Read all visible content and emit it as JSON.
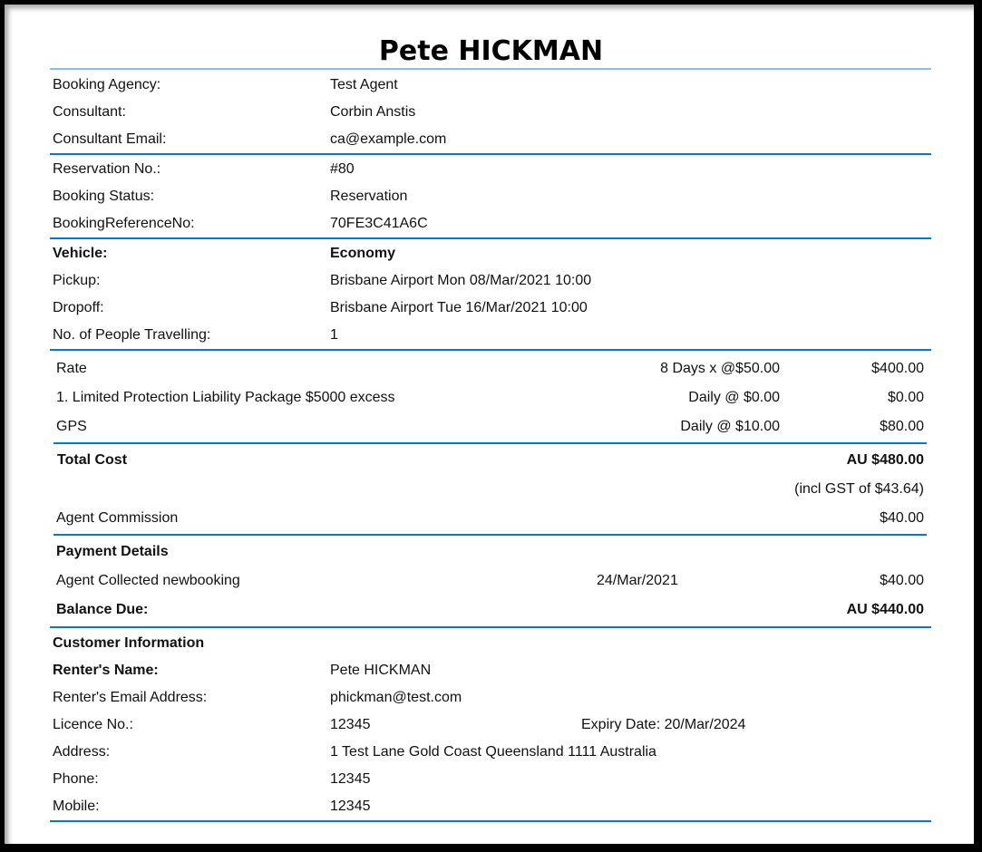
{
  "title": "Pete HICKMAN",
  "colors": {
    "top_rule": "#7fbfff",
    "rule": "#0a7ac0"
  },
  "agency": [
    {
      "label": "Booking Agency:",
      "value": "Test Agent"
    },
    {
      "label": "Consultant:",
      "value": "Corbin Anstis"
    },
    {
      "label": "Consultant Email:",
      "value": "ca@example.com"
    }
  ],
  "reservation": [
    {
      "label": "Reservation No.:",
      "value": "#80"
    },
    {
      "label": "Booking Status:",
      "value": "Reservation"
    },
    {
      "label": "BookingReferenceNo:",
      "value": "70FE3C41A6C"
    }
  ],
  "vehicle": [
    {
      "label": "Vehicle:",
      "value": "Economy"
    },
    {
      "label": "Pickup:",
      "value": "Brisbane Airport Mon 08/Mar/2021 10:00"
    },
    {
      "label": "Dropoff:",
      "value": "Brisbane Airport Tue 16/Mar/2021 10:00"
    },
    {
      "label": "No. of People Travelling:",
      "value": "1"
    }
  ],
  "charges": [
    {
      "item": "Rate",
      "rate": "8 Days x @$50.00",
      "amount": "$400.00"
    },
    {
      "item": "1. Limited Protection Liability Package $5000 excess",
      "rate": "Daily @ $0.00",
      "amount": "$0.00"
    },
    {
      "item": "GPS",
      "rate": "Daily @ $10.00",
      "amount": "$80.00"
    }
  ],
  "totals": {
    "total_label": "Total Cost",
    "total_value": "AU $480.00",
    "gst": "(incl GST of $43.64)",
    "commission_label": "Agent Commission",
    "commission_value": "$40.00"
  },
  "payment": {
    "heading": "Payment Details",
    "item": "Agent Collected newbooking",
    "date": "24/Mar/2021",
    "amount": "$40.00",
    "balance_label": "Balance Due:",
    "balance_value": "AU $440.00"
  },
  "customer": {
    "heading": "Customer Information",
    "rows": [
      {
        "label": "Renter's Name:",
        "value": "Pete HICKMAN"
      },
      {
        "label": "Renter's Email Address:",
        "value": "phickman@test.com"
      },
      {
        "label": "Licence No.:",
        "value": "12345",
        "extra": "Expiry Date: 20/Mar/2024"
      },
      {
        "label": "Address:",
        "value": "1 Test Lane Gold Coast Queensland 1111 Australia"
      },
      {
        "label": "Phone:",
        "value": "12345"
      },
      {
        "label": "Mobile:",
        "value": "12345"
      }
    ]
  }
}
